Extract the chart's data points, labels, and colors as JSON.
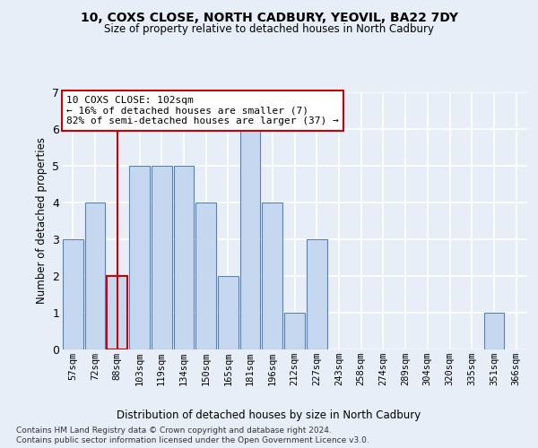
{
  "title1": "10, COXS CLOSE, NORTH CADBURY, YEOVIL, BA22 7DY",
  "title2": "Size of property relative to detached houses in North Cadbury",
  "xlabel": "Distribution of detached houses by size in North Cadbury",
  "ylabel": "Number of detached properties",
  "categories": [
    "57sqm",
    "72sqm",
    "88sqm",
    "103sqm",
    "119sqm",
    "134sqm",
    "150sqm",
    "165sqm",
    "181sqm",
    "196sqm",
    "212sqm",
    "227sqm",
    "243sqm",
    "258sqm",
    "274sqm",
    "289sqm",
    "304sqm",
    "320sqm",
    "335sqm",
    "351sqm",
    "366sqm"
  ],
  "values": [
    3,
    4,
    2,
    5,
    5,
    5,
    4,
    2,
    6,
    4,
    1,
    3,
    0,
    0,
    0,
    0,
    0,
    0,
    0,
    1,
    0
  ],
  "bar_color": "#c5d8f0",
  "bar_edge_color": "#5580bb",
  "highlight_index": 2,
  "highlight_edge_color": "#cc0000",
  "annotation_text": "10 COXS CLOSE: 102sqm\n← 16% of detached houses are smaller (7)\n82% of semi-detached houses are larger (37) →",
  "annotation_box_color": "#ffffff",
  "annotation_box_edge_color": "#cc0000",
  "footer1": "Contains HM Land Registry data © Crown copyright and database right 2024.",
  "footer2": "Contains public sector information licensed under the Open Government Licence v3.0.",
  "ylim": [
    0,
    7
  ],
  "yticks": [
    0,
    1,
    2,
    3,
    4,
    5,
    6,
    7
  ],
  "bg_color": "#e8eef8",
  "plot_bg_color": "#e8eef8",
  "grid_color": "#ffffff"
}
